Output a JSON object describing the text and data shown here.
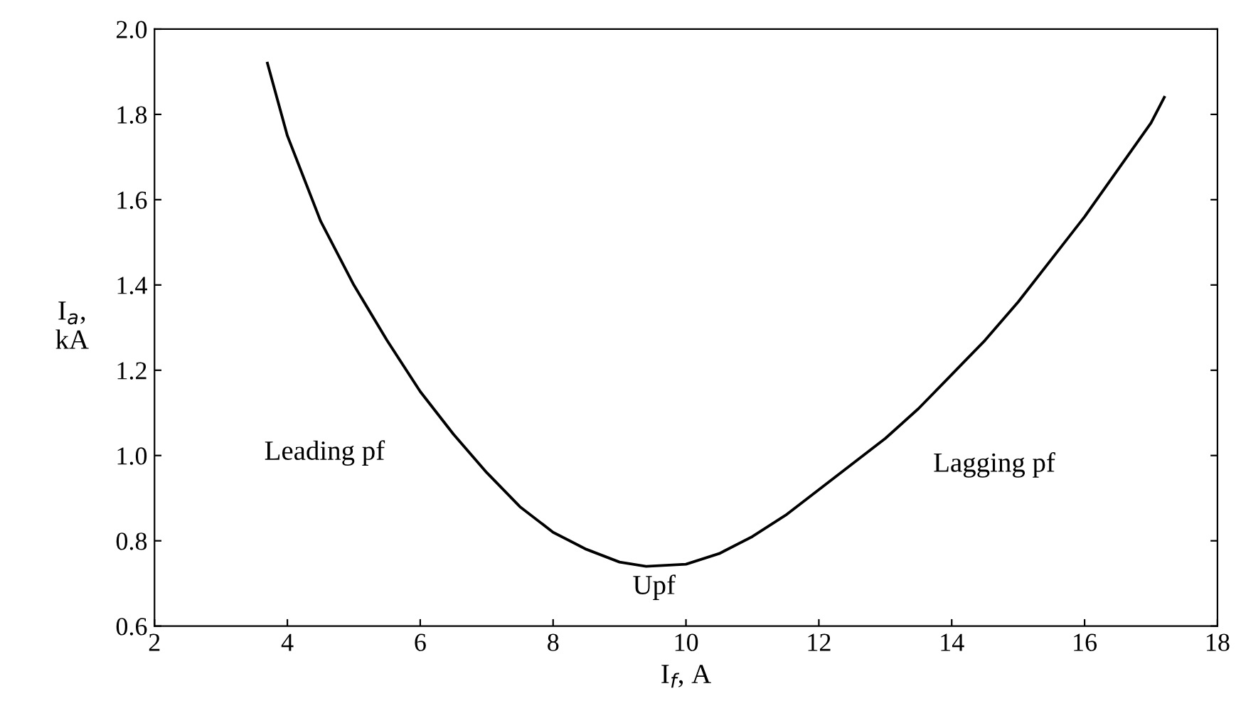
{
  "chart_data": {
    "type": "line",
    "xlabel": "I$_{f}$, A",
    "ylabel": "I$_{a}$,\nkA",
    "x": [
      3.7,
      4.0,
      4.5,
      5.0,
      5.5,
      6.0,
      6.5,
      7.0,
      7.5,
      8.0,
      8.5,
      9.0,
      9.4,
      10.0,
      10.5,
      11.0,
      11.5,
      12.0,
      12.5,
      13.0,
      13.5,
      14.0,
      14.5,
      15.0,
      15.5,
      16.0,
      16.5,
      17.0,
      17.2
    ],
    "series": [
      {
        "color": "#000000",
        "values": [
          1.92,
          1.75,
          1.55,
          1.4,
          1.27,
          1.15,
          1.05,
          0.96,
          0.88,
          0.82,
          0.78,
          0.75,
          0.74,
          0.745,
          0.77,
          0.81,
          0.86,
          0.92,
          0.98,
          1.04,
          1.11,
          1.19,
          1.27,
          1.36,
          1.46,
          1.56,
          1.67,
          1.78,
          1.84
        ]
      }
    ],
    "xlim": [
      2,
      18
    ],
    "ylim": [
      0.6,
      2.0
    ],
    "xticks": [
      2,
      4,
      6,
      8,
      10,
      12,
      14,
      16,
      18
    ],
    "yticks": [
      0.6,
      0.8,
      {
        "value": 1.0,
        "label": "1.0"
      },
      1.2,
      1.4,
      1.6,
      1.8,
      {
        "value": 2.0,
        "label": "2.0"
      }
    ],
    "annotations": [
      "Leading pf",
      "Upf",
      "Lagging pf"
    ],
    "grid": false,
    "legend": false,
    "marker": "none",
    "line_style": "solid"
  }
}
